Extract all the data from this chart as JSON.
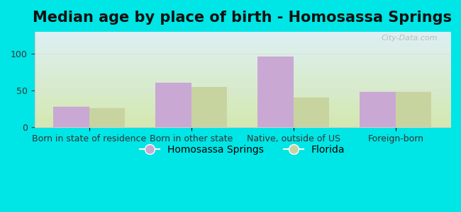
{
  "title": "Median age by place of birth - Homosassa Springs",
  "categories": [
    "Born in state of residence",
    "Born in other state",
    "Native, outside of US",
    "Foreign-born"
  ],
  "homosassa_values": [
    28,
    61,
    96,
    48
  ],
  "florida_values": [
    26,
    55,
    41,
    48
  ],
  "homosassa_color": "#c9a8d4",
  "florida_color": "#c8d4a0",
  "background_outer": "#00e5e5",
  "grad_top": "#ddf0f5",
  "grad_bottom": "#d4e8b0",
  "ylim": [
    0,
    130
  ],
  "yticks": [
    0,
    50,
    100
  ],
  "bar_width": 0.35,
  "title_fontsize": 15,
  "tick_fontsize": 9,
  "legend_fontsize": 10,
  "watermark": "City-Data.com"
}
